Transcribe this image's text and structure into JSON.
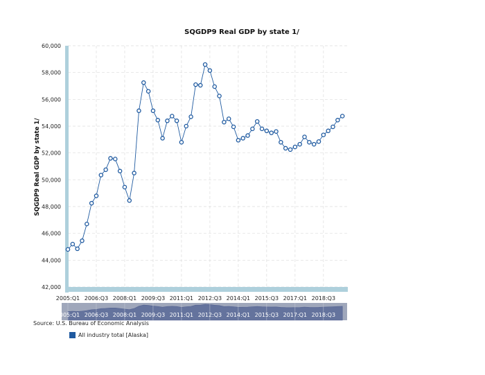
{
  "source_text": "Source: U.S. Bureau of Economic Analysis",
  "colors": {
    "series_line": "#1f5aa0",
    "axis_bar": "#aed0dc",
    "navigator_bg": "#9fa7bb",
    "navigator_fill": "#5a6a98"
  },
  "chart_data": {
    "type": "line",
    "title": "SQGDP9 Real GDP by state 1/",
    "xlabel": "",
    "ylabel": "SQGDP9 Real GDP by state 1/",
    "ylim": [
      42000,
      60000
    ],
    "yticks": [
      42000,
      44000,
      46000,
      48000,
      50000,
      52000,
      54000,
      56000,
      58000,
      60000
    ],
    "ytick_labels": [
      "42,000",
      "44,000",
      "46,000",
      "48,000",
      "50,000",
      "52,000",
      "54,000",
      "56,000",
      "58,000",
      "60,000"
    ],
    "x": [
      "2005:Q1",
      "2005:Q2",
      "2005:Q3",
      "2005:Q4",
      "2006:Q1",
      "2006:Q2",
      "2006:Q3",
      "2006:Q4",
      "2007:Q1",
      "2007:Q2",
      "2007:Q3",
      "2007:Q4",
      "2008:Q1",
      "2008:Q2",
      "2008:Q3",
      "2008:Q4",
      "2009:Q1",
      "2009:Q2",
      "2009:Q3",
      "2009:Q4",
      "2010:Q1",
      "2010:Q2",
      "2010:Q3",
      "2010:Q4",
      "2011:Q1",
      "2011:Q2",
      "2011:Q3",
      "2011:Q4",
      "2012:Q1",
      "2012:Q2",
      "2012:Q3",
      "2012:Q4",
      "2013:Q1",
      "2013:Q2",
      "2013:Q3",
      "2013:Q4",
      "2014:Q1",
      "2014:Q2",
      "2014:Q3",
      "2014:Q4",
      "2015:Q1",
      "2015:Q2",
      "2015:Q3",
      "2015:Q4",
      "2016:Q1",
      "2016:Q2",
      "2016:Q3",
      "2016:Q4",
      "2017:Q1",
      "2017:Q2",
      "2017:Q3",
      "2017:Q4",
      "2018:Q1",
      "2018:Q2",
      "2018:Q3",
      "2018:Q4",
      "2019:Q1",
      "2019:Q2",
      "2019:Q3",
      "2019:Q4"
    ],
    "xtick_labels": [
      "2005:Q1",
      "2006:Q3",
      "2008:Q1",
      "2009:Q3",
      "2011:Q1",
      "2012:Q3",
      "2014:Q1",
      "2015:Q3",
      "2017:Q1",
      "2018:Q3"
    ],
    "navigator_labels": [
      "2005:Q1",
      "2006:Q3",
      "2008:Q1",
      "2009:Q3",
      "2011:Q1",
      "2012:Q3",
      "2014:Q1",
      "2015:Q3",
      "2017:Q1",
      "2018:Q3"
    ],
    "grid": true,
    "legend_position": "bottom-left",
    "series": [
      {
        "name": "All industry total [Alaska]",
        "values": [
          44800,
          45200,
          44850,
          45450,
          46700,
          48250,
          48800,
          50350,
          50750,
          51600,
          51550,
          50650,
          49450,
          48450,
          50500,
          55150,
          57250,
          56600,
          55150,
          54450,
          53100,
          54400,
          54750,
          54400,
          52800,
          54000,
          54700,
          57100,
          57050,
          58600,
          58150,
          56950,
          56250,
          54300,
          54550,
          53950,
          52950,
          53100,
          53300,
          53800,
          54350,
          53800,
          53650,
          53500,
          53600,
          52800,
          52350,
          52250,
          52450,
          52650,
          53200,
          52800,
          52650,
          52850,
          53350,
          53650,
          53950,
          54450,
          54750,
          null
        ]
      }
    ]
  }
}
